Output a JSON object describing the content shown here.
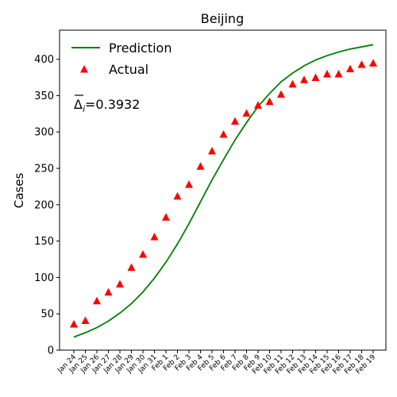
{
  "chart_data": {
    "type": "line",
    "title": "Beijing",
    "xlabel": "",
    "ylabel": "Cases",
    "ylim": [
      0,
      440
    ],
    "yticks": [
      0,
      50,
      100,
      150,
      200,
      250,
      300,
      350,
      400
    ],
    "categories": [
      "Jan 24",
      "Jan 25",
      "Jan 26",
      "Jan 27",
      "Jan 28",
      "Jan 29",
      "Jan 30",
      "Jan 31",
      "Feb 1",
      "Feb 2",
      "Feb 3",
      "Feb 4",
      "Feb 5",
      "Feb 6",
      "Feb 7",
      "Feb 8",
      "Feb 9",
      "Feb 10",
      "Feb 11",
      "Feb 12",
      "Feb 13",
      "Feb 14",
      "Feb 15",
      "Feb 16",
      "Feb 17",
      "Feb 18",
      "Feb 19"
    ],
    "legend_position": "top-left",
    "grid": false,
    "annotation_prefix": "Δ",
    "annotation_sub": "i",
    "annotation_value": "=0.3932",
    "series": [
      {
        "name": "Prediction",
        "kind": "line",
        "color": "#008000",
        "values": [
          18,
          24,
          31,
          40,
          51,
          64,
          80,
          99,
          121,
          146,
          174,
          204,
          234,
          262,
          289,
          313,
          335,
          353,
          369,
          381,
          391,
          399,
          405,
          410,
          414,
          417,
          420
        ]
      },
      {
        "name": "Actual",
        "kind": "scatter",
        "marker": "triangle",
        "color": "#ff0000",
        "values": [
          36,
          41,
          68,
          80,
          91,
          114,
          132,
          156,
          183,
          212,
          228,
          253,
          274,
          297,
          315,
          326,
          337,
          342,
          352,
          366,
          372,
          375,
          380,
          380,
          387,
          393,
          395
        ]
      }
    ]
  }
}
